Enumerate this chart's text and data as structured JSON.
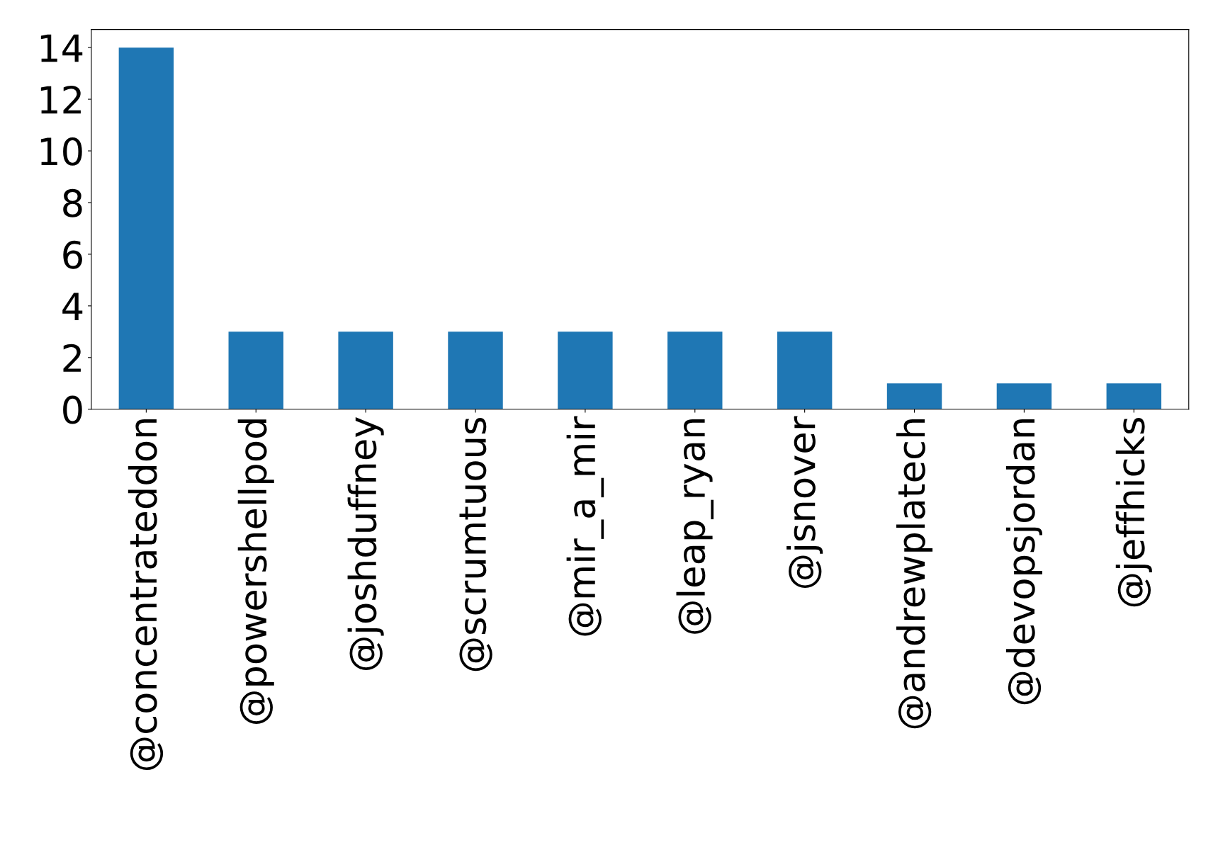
{
  "chart_data": {
    "type": "bar",
    "categories": [
      "@concentrateddon",
      "@powershellpod",
      "@joshduffney",
      "@scrumtuous",
      "@mir_a_mir",
      "@leap_ryan",
      "@jsnover",
      "@andrewplatech",
      "@devopsjordan",
      "@jeffhicks"
    ],
    "values": [
      14,
      3,
      3,
      3,
      3,
      3,
      3,
      1,
      1,
      1
    ],
    "color": "#1f77b4",
    "ylim": [
      0,
      14.7
    ],
    "yticks": [
      0,
      2,
      4,
      6,
      8,
      10,
      12,
      14
    ],
    "grid": false,
    "legend": false
  }
}
